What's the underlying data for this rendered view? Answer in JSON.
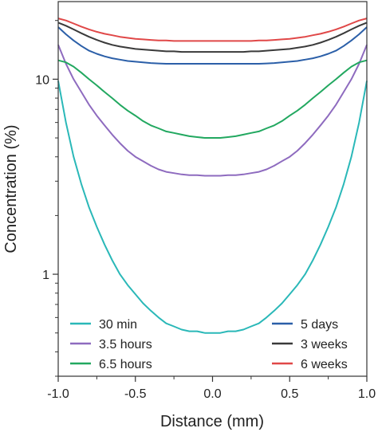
{
  "chart_data": {
    "type": "line",
    "title": "",
    "xlabel": "Distance (mm)",
    "ylabel": "Concentration (%)",
    "xlim": [
      -1.0,
      1.0
    ],
    "ylim": [
      0.3,
      25
    ],
    "yscale": "log",
    "grid": false,
    "legend_placement": "bottom",
    "x_ticks": [
      "-1.0",
      "-0.5",
      "0.0",
      "0.5",
      "1.0"
    ],
    "x_tick_values": [
      -1.0,
      -0.5,
      0.0,
      0.5,
      1.0
    ],
    "y_ticks": [
      "1",
      "10"
    ],
    "y_tick_values": [
      1,
      10
    ],
    "x": [
      -1.0,
      -0.95,
      -0.9,
      -0.85,
      -0.8,
      -0.75,
      -0.7,
      -0.65,
      -0.6,
      -0.55,
      -0.5,
      -0.45,
      -0.4,
      -0.35,
      -0.3,
      -0.25,
      -0.2,
      -0.15,
      -0.1,
      -0.05,
      0.0,
      0.05,
      0.1,
      0.15,
      0.2,
      0.25,
      0.3,
      0.35,
      0.4,
      0.45,
      0.5,
      0.55,
      0.6,
      0.65,
      0.7,
      0.75,
      0.8,
      0.85,
      0.9,
      0.95,
      1.0
    ],
    "series": [
      {
        "name": "30 min",
        "color": "#2ab8b8",
        "values": [
          9.8,
          6.0,
          4.0,
          2.9,
          2.2,
          1.75,
          1.42,
          1.18,
          1.0,
          0.88,
          0.79,
          0.71,
          0.65,
          0.6,
          0.56,
          0.54,
          0.52,
          0.51,
          0.51,
          0.5,
          0.5,
          0.5,
          0.51,
          0.51,
          0.52,
          0.54,
          0.56,
          0.6,
          0.65,
          0.71,
          0.79,
          0.88,
          1.0,
          1.18,
          1.42,
          1.75,
          2.2,
          2.9,
          4.0,
          6.0,
          9.8
        ]
      },
      {
        "name": "3.5 hours",
        "color": "#8e6bbf",
        "values": [
          15.0,
          12.0,
          10.0,
          8.6,
          7.4,
          6.5,
          5.8,
          5.2,
          4.7,
          4.3,
          4.0,
          3.8,
          3.6,
          3.45,
          3.35,
          3.3,
          3.25,
          3.22,
          3.22,
          3.2,
          3.2,
          3.2,
          3.22,
          3.22,
          3.25,
          3.3,
          3.35,
          3.45,
          3.6,
          3.8,
          4.0,
          4.3,
          4.7,
          5.2,
          5.8,
          6.5,
          7.4,
          8.6,
          10.0,
          12.0,
          15.0
        ]
      },
      {
        "name": "6.5 hours",
        "color": "#22a860",
        "values": [
          12.5,
          12.2,
          11.6,
          10.8,
          10.0,
          9.3,
          8.6,
          8.0,
          7.4,
          6.9,
          6.5,
          6.1,
          5.8,
          5.6,
          5.4,
          5.3,
          5.2,
          5.1,
          5.05,
          5.0,
          5.0,
          5.0,
          5.05,
          5.1,
          5.2,
          5.3,
          5.4,
          5.6,
          5.8,
          6.1,
          6.5,
          6.9,
          7.4,
          8.0,
          8.6,
          9.3,
          10.0,
          10.8,
          11.6,
          12.2,
          12.5
        ]
      },
      {
        "name": "5 days",
        "color": "#2b5fa8",
        "values": [
          18.5,
          17.0,
          15.8,
          14.8,
          14.0,
          13.5,
          13.1,
          12.8,
          12.6,
          12.4,
          12.3,
          12.2,
          12.1,
          12.05,
          12.0,
          12.0,
          12.0,
          12.0,
          12.0,
          12.0,
          12.0,
          12.0,
          12.0,
          12.0,
          12.0,
          12.0,
          12.0,
          12.05,
          12.1,
          12.2,
          12.3,
          12.4,
          12.6,
          12.8,
          13.1,
          13.5,
          14.0,
          14.8,
          15.8,
          17.0,
          18.5
        ]
      },
      {
        "name": "3 weeks",
        "color": "#3a3a3a",
        "values": [
          19.5,
          18.8,
          18.0,
          17.2,
          16.5,
          15.9,
          15.4,
          15.0,
          14.7,
          14.5,
          14.3,
          14.2,
          14.1,
          14.0,
          13.9,
          13.9,
          13.8,
          13.8,
          13.8,
          13.8,
          13.8,
          13.8,
          13.8,
          13.8,
          13.8,
          13.9,
          13.9,
          14.0,
          14.1,
          14.2,
          14.3,
          14.5,
          14.7,
          15.0,
          15.4,
          15.9,
          16.5,
          17.2,
          18.0,
          18.8,
          19.5
        ]
      },
      {
        "name": "6 weeks",
        "color": "#e04848",
        "values": [
          20.5,
          20.0,
          19.3,
          18.6,
          18.0,
          17.5,
          17.1,
          16.8,
          16.5,
          16.3,
          16.1,
          16.0,
          15.9,
          15.8,
          15.8,
          15.7,
          15.7,
          15.7,
          15.7,
          15.7,
          15.7,
          15.7,
          15.7,
          15.7,
          15.7,
          15.7,
          15.8,
          15.8,
          15.9,
          16.0,
          16.1,
          16.3,
          16.5,
          16.8,
          17.1,
          17.5,
          18.0,
          18.6,
          19.3,
          20.0,
          20.5
        ]
      }
    ]
  }
}
